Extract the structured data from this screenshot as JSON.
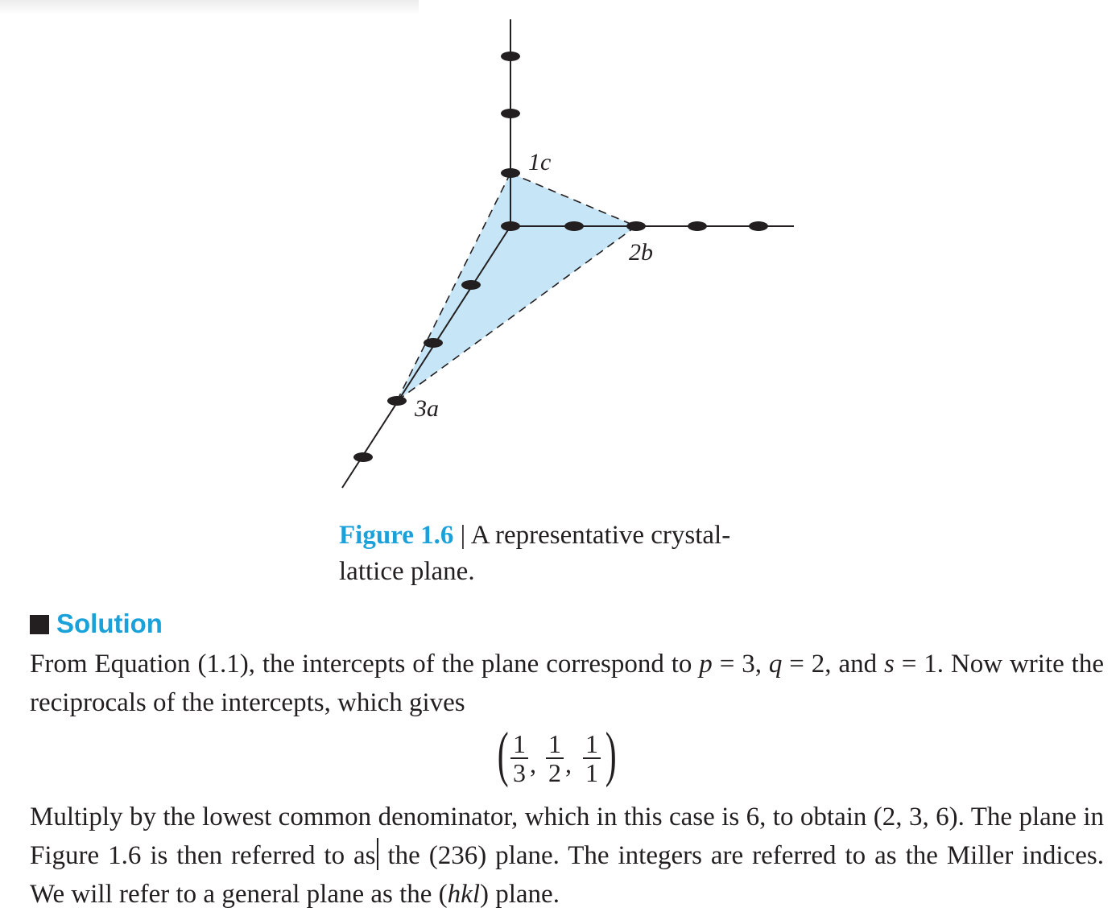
{
  "figure": {
    "labels": {
      "c": "1c",
      "b": "2b",
      "a": "3a"
    },
    "plane_fill": "#c6e6f8",
    "caption_number": "Figure 1.6",
    "caption_sep": "|",
    "caption_text": "A representative crystal-lattice plane."
  },
  "solution": {
    "heading": "Solution",
    "para1_pre": "From Equation (1.1), the intercepts of the plane correspond to ",
    "var_p": "p",
    "eq_p": " = 3, ",
    "var_q": "q",
    "eq_q": " = 2, and ",
    "var_s": "s",
    "eq_s": " = 1. Now write the reciprocals of the intercepts, which gives",
    "equation": {
      "open": "(",
      "close": ")",
      "fractions": [
        {
          "num": "1",
          "den": "3"
        },
        {
          "num": "1",
          "den": "2"
        },
        {
          "num": "1",
          "den": "1"
        }
      ],
      "comma": ","
    },
    "para2_a": "Multiply by the lowest common denominator, which in this case is 6, to obtain (2, 3, 6). The plane in Figure 1.6 is then referred to as",
    "para2_b": " the (236) plane. The integers are referred to as the Miller indices. We will refer to a general plane as the (",
    "para2_hkl": "hkl",
    "para2_c": ") plane."
  },
  "colors": {
    "accent": "#1ba1d9",
    "text": "#231f20"
  }
}
